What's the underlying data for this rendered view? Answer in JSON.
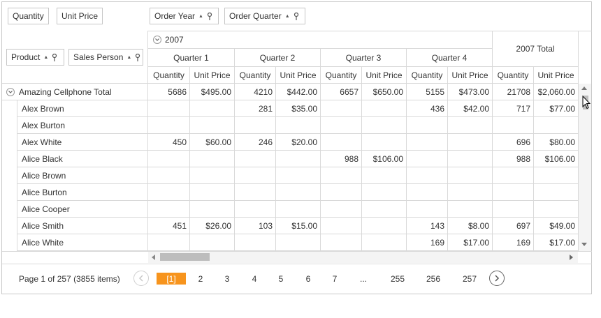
{
  "filter_area": {
    "chips": [
      {
        "label": "Quantity"
      },
      {
        "label": "Unit Price"
      }
    ]
  },
  "column_area": {
    "chips": [
      {
        "label": "Order Year"
      },
      {
        "label": "Order Quarter"
      }
    ]
  },
  "row_area": {
    "chips": [
      {
        "label": "Product"
      },
      {
        "label": "Sales Person"
      }
    ]
  },
  "column_headers": {
    "year": "2007",
    "year_total": "2007 Total",
    "quarters": [
      "Quarter 1",
      "Quarter 2",
      "Quarter 3",
      "Quarter 4"
    ],
    "measures": [
      "Quantity",
      "Unit Price",
      "Quantity",
      "Unit Price",
      "Quantity",
      "Unit Price",
      "Quantity",
      "Unit Price",
      "Quantity",
      "Unit Price"
    ]
  },
  "rows": [
    {
      "label": "Amazing Cellphone Total",
      "group": true,
      "values": [
        "5686",
        "$495.00",
        "4210",
        "$442.00",
        "6657",
        "$650.00",
        "5155",
        "$473.00",
        "21708",
        "$2,060.00"
      ]
    },
    {
      "label": "Alex Brown",
      "values": [
        "",
        "",
        "281",
        "$35.00",
        "",
        "",
        "436",
        "$42.00",
        "717",
        "$77.00"
      ]
    },
    {
      "label": "Alex Burton",
      "values": [
        "",
        "",
        "",
        "",
        "",
        "",
        "",
        "",
        "",
        ""
      ]
    },
    {
      "label": "Alex White",
      "values": [
        "450",
        "$60.00",
        "246",
        "$20.00",
        "",
        "",
        "",
        "",
        "696",
        "$80.00"
      ]
    },
    {
      "label": "Alice Black",
      "values": [
        "",
        "",
        "",
        "",
        "988",
        "$106.00",
        "",
        "",
        "988",
        "$106.00"
      ]
    },
    {
      "label": "Alice Brown",
      "values": [
        "",
        "",
        "",
        "",
        "",
        "",
        "",
        "",
        "",
        ""
      ]
    },
    {
      "label": "Alice Burton",
      "values": [
        "",
        "",
        "",
        "",
        "",
        "",
        "",
        "",
        "",
        ""
      ]
    },
    {
      "label": "Alice Cooper",
      "values": [
        "",
        "",
        "",
        "",
        "",
        "",
        "",
        "",
        "",
        ""
      ]
    },
    {
      "label": "Alice Smith",
      "values": [
        "451",
        "$26.00",
        "103",
        "$15.00",
        "",
        "",
        "143",
        "$8.00",
        "697",
        "$49.00"
      ]
    },
    {
      "label": "Alice White",
      "values": [
        "",
        "",
        "",
        "",
        "",
        "",
        "169",
        "$17.00",
        "169",
        "$17.00"
      ]
    }
  ],
  "pager": {
    "info": "Page 1 of 257 (3855 items)",
    "pages": [
      "[1]",
      "2",
      "3",
      "4",
      "5",
      "6",
      "7",
      "...",
      "255",
      "256",
      "257"
    ],
    "current": "[1]"
  },
  "icons": {
    "collapse": "collapse-icon",
    "pin": "pin-icon",
    "sort": "sort-ascending-icon",
    "prev": "previous-page-icon",
    "next": "next-page-icon"
  },
  "colors": {
    "accent": "#f7941d",
    "border": "#d9d9d9",
    "text": "#333333"
  }
}
